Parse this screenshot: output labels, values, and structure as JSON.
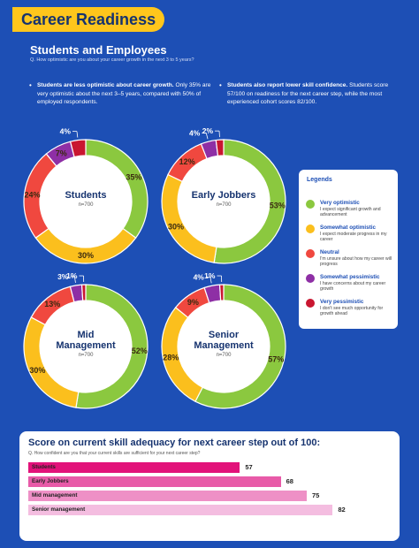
{
  "header": {
    "title": "Career Readiness"
  },
  "section": {
    "title": "Students and Employees",
    "question": "Q. How optimistic are you about your career growth in the next 3 to 5 years?"
  },
  "bullets": [
    {
      "bold": "Students are less optimistic about career growth.",
      "text": " Only 35% are very optimistic about the next 3–5 years, compared with 50% of employed respondents."
    },
    {
      "bold": "Students also report lower skill confidence.",
      "text": " Students score 57/100 on readiness for the next career step, while the most experienced cohort scores 82/100."
    }
  ],
  "colors": {
    "very_optimistic": "#8bc83f",
    "somewhat_optimistic": "#fbbf1d",
    "neutral": "#f0483f",
    "somewhat_pessimistic": "#8e2fa5",
    "very_pessimistic": "#c91630"
  },
  "legend": {
    "title": "Legends",
    "items": [
      {
        "name": "Very optimistic",
        "desc": "I expect significant growth and advancement",
        "color": "#8bc83f"
      },
      {
        "name": "Somewhat optimistic",
        "desc": "I expect moderate progress in my career",
        "color": "#fbbf1d"
      },
      {
        "name": "Neutral",
        "desc": "I'm unsure about how my career will progress",
        "color": "#f0483f"
      },
      {
        "name": "Somewhat pessimistic",
        "desc": "I have concerns about my career growth",
        "color": "#8e2fa5"
      },
      {
        "name": "Very pessimistic",
        "desc": "I don't see much opportunity for growth ahead",
        "color": "#c91630"
      }
    ]
  },
  "chart_data": [
    {
      "type": "pie",
      "title": "Students",
      "subtitle": "n=700",
      "categories": [
        "Very optimistic",
        "Somewhat optimistic",
        "Neutral",
        "Somewhat pessimistic",
        "Very pessimistic"
      ],
      "values": [
        35,
        30,
        24,
        7,
        4
      ]
    },
    {
      "type": "pie",
      "title": "Early Jobbers",
      "subtitle": "n=700",
      "categories": [
        "Very optimistic",
        "Somewhat optimistic",
        "Neutral",
        "Somewhat pessimistic",
        "Very pessimistic"
      ],
      "values": [
        53,
        30,
        12,
        4,
        2
      ]
    },
    {
      "type": "pie",
      "title": "Mid Management",
      "subtitle": "n=700",
      "categories": [
        "Very optimistic",
        "Somewhat optimistic",
        "Neutral",
        "Somewhat pessimistic",
        "Very pessimistic"
      ],
      "values": [
        52,
        30,
        13,
        3,
        1
      ]
    },
    {
      "type": "pie",
      "title": "Senior Management",
      "subtitle": "n=700",
      "categories": [
        "Very optimistic",
        "Somewhat optimistic",
        "Neutral",
        "Somewhat pessimistic",
        "Very pessimistic"
      ],
      "values": [
        57,
        28,
        9,
        4,
        1
      ]
    },
    {
      "type": "bar",
      "title": "Score on current skill adequacy for next career step out of 100:",
      "subtitle": "Q. How confident are you that your current skills are sufficient for your next career step?",
      "categories": [
        "Students",
        "Early Jobbers",
        "Mid management",
        "Senior management"
      ],
      "values": [
        57,
        68,
        75,
        82
      ],
      "colors": [
        "#e2127a",
        "#e85aa8",
        "#ee90c6",
        "#f4bde0"
      ],
      "ylim": [
        0,
        100
      ]
    }
  ]
}
